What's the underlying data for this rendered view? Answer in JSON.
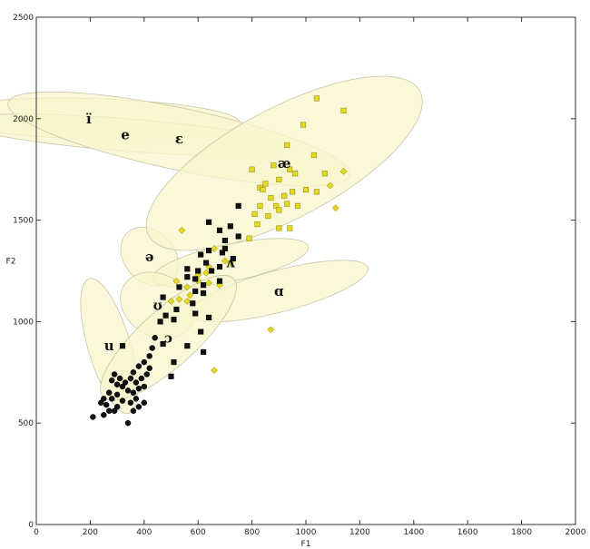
{
  "chart_data": {
    "type": "scatter",
    "xlabel": "F1",
    "ylabel": "F2",
    "xlim": [
      0,
      2000
    ],
    "ylim": [
      0,
      2500
    ],
    "x_ticks": [
      0,
      200,
      400,
      600,
      800,
      1000,
      1200,
      1400,
      1600,
      1800,
      2000
    ],
    "y_ticks": [
      0,
      500,
      1000,
      1500,
      2000,
      2500
    ],
    "grid": false,
    "colors": {
      "ellipse_fill": "#f8f5cc",
      "ellipse_stroke": "#c9c6a6",
      "marker_yellow": "#e3d824",
      "marker_black": "#111111"
    },
    "vowel_regions": [
      {
        "label": "ï",
        "cx": 195,
        "cy": 2000,
        "rx": 100,
        "ry": 560,
        "angle": 88
      },
      {
        "label": "e",
        "cx": 330,
        "cy": 1920,
        "rx": 80,
        "ry": 620,
        "angle": 84
      },
      {
        "label": "ɛ",
        "cx": 530,
        "cy": 1900,
        "rx": 150,
        "ry": 660,
        "angle": 74
      },
      {
        "label": "ə",
        "cx": 420,
        "cy": 1320,
        "rx": 100,
        "ry": 150,
        "angle": 20
      },
      {
        "label": "æ",
        "cx": 920,
        "cy": 1780,
        "rx": 620,
        "ry": 250,
        "angle": 38
      },
      {
        "label": "ʌ",
        "cx": 720,
        "cy": 1290,
        "rx": 300,
        "ry": 90,
        "angle": 16
      },
      {
        "label": "ɑ",
        "cx": 900,
        "cy": 1150,
        "rx": 350,
        "ry": 100,
        "angle": 20
      },
      {
        "label": "ʊ",
        "cx": 450,
        "cy": 1080,
        "rx": 130,
        "ry": 170,
        "angle": 25
      },
      {
        "label": "u",
        "cx": 270,
        "cy": 880,
        "rx": 80,
        "ry": 340,
        "angle": 12
      },
      {
        "label": "ɔ",
        "cx": 490,
        "cy": 920,
        "rx": 380,
        "ry": 120,
        "angle": 52
      }
    ],
    "series": [
      {
        "marker": "square",
        "color": "#e3d824",
        "points": [
          [
            1040,
            2100
          ],
          [
            1140,
            2040
          ],
          [
            990,
            1970
          ],
          [
            930,
            1870
          ],
          [
            800,
            1750
          ],
          [
            880,
            1770
          ],
          [
            940,
            1750
          ],
          [
            960,
            1730
          ],
          [
            1030,
            1820
          ],
          [
            1070,
            1730
          ],
          [
            830,
            1660
          ],
          [
            850,
            1680
          ],
          [
            900,
            1700
          ],
          [
            840,
            1650
          ],
          [
            870,
            1610
          ],
          [
            920,
            1620
          ],
          [
            950,
            1640
          ],
          [
            1000,
            1650
          ],
          [
            1040,
            1640
          ],
          [
            890,
            1570
          ],
          [
            930,
            1580
          ],
          [
            970,
            1570
          ],
          [
            830,
            1570
          ],
          [
            810,
            1530
          ],
          [
            860,
            1520
          ],
          [
            900,
            1550
          ],
          [
            820,
            1480
          ],
          [
            940,
            1460
          ],
          [
            900,
            1460
          ],
          [
            790,
            1410
          ]
        ]
      },
      {
        "marker": "diamond",
        "color": "#e3d824",
        "points": [
          [
            1140,
            1740
          ],
          [
            1090,
            1670
          ],
          [
            1110,
            1560
          ],
          [
            540,
            1450
          ],
          [
            660,
            1360
          ],
          [
            700,
            1300
          ],
          [
            720,
            1290
          ],
          [
            630,
            1240
          ],
          [
            600,
            1230
          ],
          [
            640,
            1270
          ],
          [
            520,
            1200
          ],
          [
            560,
            1170
          ],
          [
            600,
            1200
          ],
          [
            640,
            1190
          ],
          [
            680,
            1180
          ],
          [
            570,
            1130
          ],
          [
            530,
            1110
          ],
          [
            500,
            1100
          ],
          [
            560,
            1100
          ],
          [
            870,
            960
          ],
          [
            660,
            760
          ]
        ]
      },
      {
        "marker": "square",
        "color": "#111111",
        "points": [
          [
            750,
            1570
          ],
          [
            640,
            1490
          ],
          [
            720,
            1470
          ],
          [
            680,
            1450
          ],
          [
            750,
            1420
          ],
          [
            700,
            1400
          ],
          [
            700,
            1360
          ],
          [
            640,
            1350
          ],
          [
            610,
            1330
          ],
          [
            690,
            1340
          ],
          [
            730,
            1310
          ],
          [
            630,
            1290
          ],
          [
            680,
            1270
          ],
          [
            560,
            1260
          ],
          [
            600,
            1250
          ],
          [
            650,
            1250
          ],
          [
            560,
            1220
          ],
          [
            590,
            1210
          ],
          [
            680,
            1200
          ],
          [
            620,
            1180
          ],
          [
            530,
            1170
          ],
          [
            590,
            1150
          ],
          [
            620,
            1140
          ],
          [
            580,
            1090
          ],
          [
            520,
            1060
          ],
          [
            590,
            1040
          ],
          [
            470,
            1120
          ],
          [
            480,
            1030
          ],
          [
            460,
            1000
          ],
          [
            510,
            1010
          ],
          [
            640,
            1020
          ],
          [
            610,
            950
          ],
          [
            470,
            890
          ],
          [
            560,
            880
          ],
          [
            620,
            850
          ],
          [
            510,
            800
          ],
          [
            500,
            730
          ],
          [
            320,
            880
          ]
        ]
      },
      {
        "marker": "circle",
        "color": "#111111",
        "points": [
          [
            440,
            920
          ],
          [
            430,
            870
          ],
          [
            420,
            830
          ],
          [
            400,
            800
          ],
          [
            380,
            780
          ],
          [
            360,
            750
          ],
          [
            350,
            720
          ],
          [
            330,
            700
          ],
          [
            310,
            720
          ],
          [
            290,
            740
          ],
          [
            280,
            710
          ],
          [
            300,
            690
          ],
          [
            320,
            680
          ],
          [
            340,
            660
          ],
          [
            360,
            650
          ],
          [
            380,
            670
          ],
          [
            400,
            680
          ],
          [
            390,
            720
          ],
          [
            370,
            700
          ],
          [
            410,
            740
          ],
          [
            420,
            770
          ],
          [
            270,
            650
          ],
          [
            250,
            620
          ],
          [
            240,
            600
          ],
          [
            260,
            590
          ],
          [
            280,
            620
          ],
          [
            300,
            640
          ],
          [
            320,
            610
          ],
          [
            350,
            600
          ],
          [
            370,
            620
          ],
          [
            380,
            580
          ],
          [
            360,
            560
          ],
          [
            300,
            580
          ],
          [
            290,
            560
          ],
          [
            270,
            560
          ],
          [
            250,
            540
          ],
          [
            210,
            530
          ],
          [
            340,
            500
          ],
          [
            400,
            600
          ]
        ]
      }
    ]
  }
}
